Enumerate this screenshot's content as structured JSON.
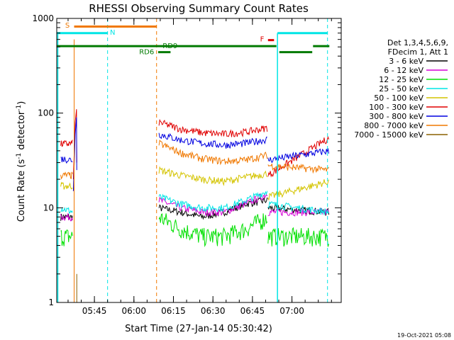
{
  "chart_data": {
    "type": "line",
    "title": "RHESSI Observing Summary Count Rates",
    "xlabel": "Start Time (27-Jan-14 05:30:42)",
    "ylabel_main": "Count Rate (s",
    "ylabel_sup": "-1",
    "ylabel_tail": " detector",
    "ylabel_end": ")",
    "yscale": "log",
    "ylim": [
      1,
      1000
    ],
    "xlim_minutes": [
      0,
      108
    ],
    "y_ticks": [
      "1",
      "10",
      "100",
      "1000"
    ],
    "x_ticks": [
      {
        "label": "05:45",
        "t": 14.3
      },
      {
        "label": "06:00",
        "t": 29.3
      },
      {
        "label": "06:15",
        "t": 44.3
      },
      {
        "label": "06:30",
        "t": 59.3
      },
      {
        "label": "06:45",
        "t": 74.3
      },
      {
        "label": "07:00",
        "t": 89.3
      }
    ],
    "legend": {
      "placement": "right",
      "header": [
        "Det 1,3,4,5,6,9,",
        "FDecim 1, Att 1"
      ],
      "entries": [
        {
          "label": "3 - 6 keV",
          "color": "#000000"
        },
        {
          "label": "6 - 12 keV",
          "color": "#d500d5"
        },
        {
          "label": "12 - 25 keV",
          "color": "#00e000"
        },
        {
          "label": "25 - 50 keV",
          "color": "#00e5e5"
        },
        {
          "label": "50 - 100 keV",
          "color": "#d4c400"
        },
        {
          "label": "100 - 300 keV",
          "color": "#e00000"
        },
        {
          "label": "300 - 800 keV",
          "color": "#0000e0"
        },
        {
          "label": "800 - 7000 keV",
          "color": "#f07800"
        },
        {
          "label": "7000 - 15000 keV",
          "color": "#8a6000"
        }
      ]
    },
    "segments": [
      {
        "start": 1.5,
        "end": 7.5
      },
      {
        "start": 38.5,
        "end": 80
      }
    ],
    "series_values": [
      {
        "color": "#000000",
        "seg1": [
          8,
          8
        ],
        "seg2": [
          10,
          9,
          8,
          9,
          11,
          12
        ],
        "seg3": [
          10,
          9
        ]
      },
      {
        "color": "#d500d5",
        "seg1": [
          8,
          8
        ],
        "seg2": [
          12,
          10,
          9,
          9,
          11,
          14
        ],
        "seg3": [
          9,
          9
        ]
      },
      {
        "color": "#00e000",
        "seg1": [
          5,
          5
        ],
        "seg2": [
          8,
          6,
          5,
          5,
          6,
          8
        ],
        "seg3": [
          5,
          5
        ]
      },
      {
        "color": "#00e5e5",
        "seg1": [
          10,
          9
        ],
        "seg2": [
          13,
          11,
          10,
          10,
          12,
          15
        ],
        "seg3": [
          11,
          9
        ]
      },
      {
        "color": "#d4c400",
        "seg1": [
          17,
          17
        ],
        "seg2": [
          25,
          22,
          20,
          19,
          21,
          23
        ],
        "seg3": [
          13,
          19
        ]
      },
      {
        "color": "#e00000",
        "seg1": [
          47,
          48
        ],
        "seg2": [
          80,
          68,
          62,
          60,
          63,
          70
        ],
        "seg3": [
          22,
          55
        ]
      },
      {
        "color": "#0000e0",
        "seg1": [
          33,
          32
        ],
        "seg2": [
          60,
          52,
          48,
          46,
          48,
          53
        ],
        "seg3": [
          32,
          40
        ]
      },
      {
        "color": "#f07800",
        "seg1": [
          22,
          22
        ],
        "seg2": [
          48,
          38,
          33,
          31,
          32,
          36
        ],
        "seg3": [
          28,
          25
        ]
      }
    ],
    "annotations": {
      "S": "S",
      "N": "N",
      "F": "F",
      "RD6": "RD6",
      "RD9": "RD9"
    },
    "footer_date": "19-Oct-2021 05:08"
  }
}
